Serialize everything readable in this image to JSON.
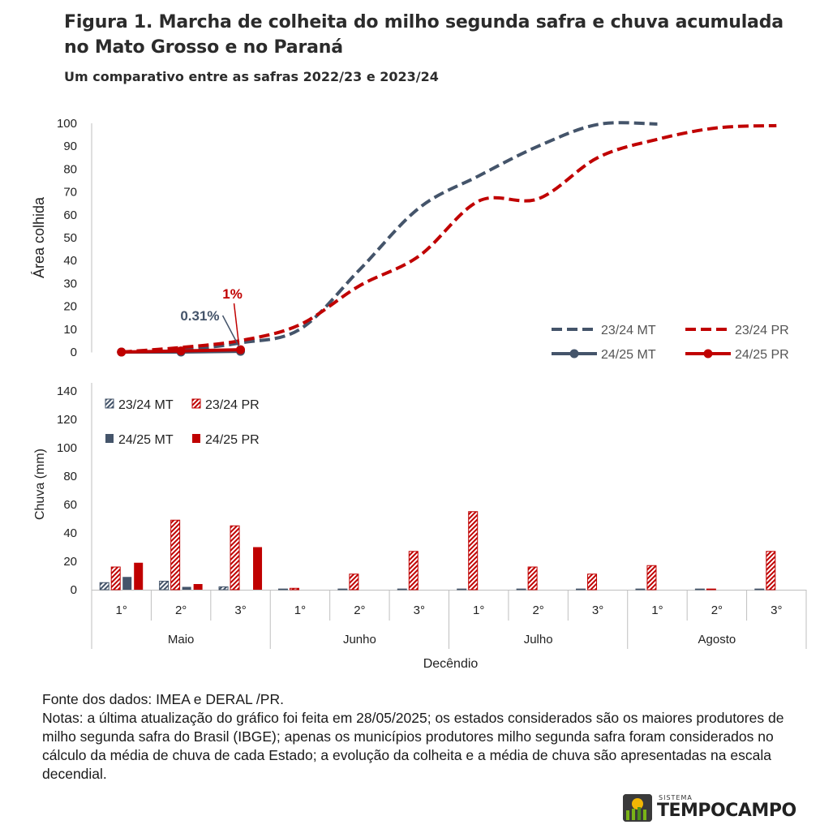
{
  "header": {
    "title": "Figura 1. Marcha de colheita do milho segunda safra e chuva acumulada no Mato Grosso e no Paraná",
    "subtitle": "Um comparativo entre as safras 2022/23 e 2023/24"
  },
  "colors": {
    "mt": "#44546A",
    "pr": "#C00000",
    "grid": "#d0d0d0"
  },
  "chart_data": [
    {
      "type": "line",
      "ylabel": "Área colhida",
      "ylim": [
        0,
        100
      ],
      "yticks": [
        0,
        10,
        20,
        30,
        40,
        50,
        60,
        70,
        80,
        90,
        100
      ],
      "x": [
        "Maio 1°",
        "Maio 2°",
        "Maio 3°",
        "Junho 1°",
        "Junho 2°",
        "Junho 3°",
        "Julho 1°",
        "Julho 2°",
        "Julho 3°",
        "Agosto 1°",
        "Agosto 2°",
        "Agosto 3°"
      ],
      "series": [
        {
          "name": "23/24 MT",
          "style": "dashed",
          "color": "#44546A",
          "values": [
            0,
            1,
            4,
            10,
            36,
            63,
            77,
            90,
            99.5,
            99.7,
            null,
            null
          ]
        },
        {
          "name": "23/24 PR",
          "style": "dashed",
          "color": "#C00000",
          "values": [
            0,
            2,
            5,
            12,
            29,
            42,
            66,
            67,
            85,
            93,
            98,
            99
          ]
        },
        {
          "name": "24/25 MT",
          "style": "solid-marker",
          "color": "#44546A",
          "values": [
            0,
            0,
            0.31,
            null,
            null,
            null,
            null,
            null,
            null,
            null,
            null,
            null
          ]
        },
        {
          "name": "24/25 PR",
          "style": "solid-marker",
          "color": "#C00000",
          "values": [
            0,
            0.5,
            1,
            null,
            null,
            null,
            null,
            null,
            null,
            null,
            null,
            null
          ]
        }
      ],
      "annotations": [
        {
          "text": "0.31%",
          "series": "24/25 MT"
        },
        {
          "text": "1%",
          "series": "24/25 PR"
        }
      ],
      "legend": "bottom-right"
    },
    {
      "type": "bar",
      "ylabel": "Chuva (mm)",
      "xlabel": "Decêndio",
      "ylim": [
        0,
        140
      ],
      "yticks": [
        0,
        20,
        40,
        60,
        80,
        100,
        120,
        140
      ],
      "months": [
        "Maio",
        "Junho",
        "Julho",
        "Agosto"
      ],
      "categories": [
        "1°",
        "2°",
        "3°",
        "1°",
        "2°",
        "3°",
        "1°",
        "2°",
        "3°",
        "1°",
        "2°",
        "3°"
      ],
      "series": [
        {
          "name": "23/24 MT",
          "pattern": "hatched",
          "color": "#44546A",
          "values": [
            5,
            6,
            2,
            0.5,
            0.5,
            0.5,
            0.5,
            0.5,
            0.5,
            0.5,
            0.5,
            0.5
          ]
        },
        {
          "name": "23/24 PR",
          "pattern": "hatched",
          "color": "#C00000",
          "values": [
            16,
            49,
            45,
            1,
            11,
            27,
            55,
            16,
            11,
            17,
            0.5,
            27
          ]
        },
        {
          "name": "24/25 MT",
          "pattern": "solid",
          "color": "#44546A",
          "values": [
            9,
            2,
            0,
            null,
            null,
            null,
            null,
            null,
            null,
            null,
            null,
            null
          ]
        },
        {
          "name": "24/25 PR",
          "pattern": "solid",
          "color": "#C00000",
          "values": [
            19,
            4,
            30,
            null,
            null,
            null,
            null,
            null,
            null,
            null,
            null,
            null
          ]
        }
      ],
      "legend": "top-left"
    }
  ],
  "notes": {
    "source": "Fonte dos dados: IMEA e DERAL /PR.",
    "text": "Notas: a última atualização do gráfico foi feita em 28/05/2025; os estados considerados são os maiores produtores de milho segunda safra do Brasil (IBGE); apenas os municípios produtores milho segunda safra foram considerados no cálculo da média de chuva de cada Estado; a evolução da colheita e a média de chuva são apresentadas na escala decendial."
  },
  "logo": {
    "small": "SISTEMA",
    "big": "TEMPOCAMPO"
  }
}
